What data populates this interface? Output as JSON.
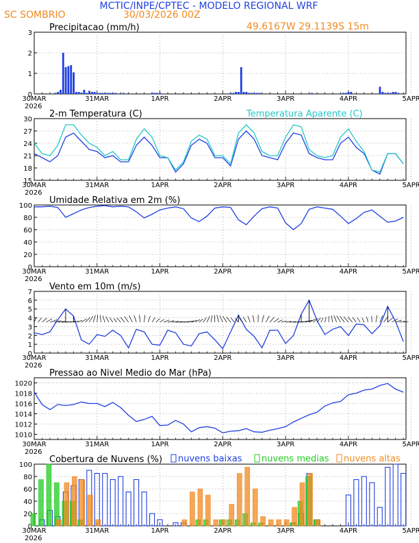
{
  "header": {
    "title": "MCTIC/INPE/CPTEC - MODELO REGIONAL WRF",
    "location": "SC SOMBRIO",
    "run": "30/03/2026 00Z",
    "coords": "49.6167W 29.1139S 15m"
  },
  "colors": {
    "blue": "#1f3fe0",
    "cyan": "#22c8c8",
    "green": "#22cc22",
    "orange": "#f08a20",
    "black": "#000000",
    "grid": "#999999"
  },
  "chart_data": [
    {
      "id": "precip",
      "type": "bar",
      "title": "Precipitacao (mm/h)",
      "ylim": [
        0,
        3
      ],
      "yticks": [
        0,
        1,
        2,
        3
      ],
      "xtick_labels": [
        "30MAR",
        "31MAR",
        "1APR",
        "2APR",
        "3APR",
        "4APR",
        "5APR"
      ],
      "xtick_year": "2026",
      "x_hours": [
        8,
        9,
        10,
        11,
        12,
        13,
        14,
        15,
        16,
        17,
        18,
        19,
        20,
        21,
        22,
        23,
        24,
        25,
        26,
        27,
        28,
        29,
        30,
        31,
        34,
        45,
        46,
        47,
        48,
        75,
        76,
        77,
        78,
        79,
        80,
        81,
        82,
        83,
        84,
        85,
        86,
        106,
        118,
        119,
        120,
        121,
        132,
        133,
        134,
        135,
        136,
        137,
        138,
        139
      ],
      "values": [
        0.05,
        0.1,
        0.2,
        2.0,
        1.3,
        1.35,
        1.4,
        1.05,
        0.1,
        0.1,
        0.05,
        0.2,
        0.05,
        0.15,
        0.1,
        0.1,
        0.05,
        0.05,
        0.05,
        0.05,
        0.05,
        0.05,
        0.05,
        0.05,
        0.05,
        0.05,
        0.05,
        0.05,
        0.05,
        0.05,
        0.05,
        0.1,
        0.1,
        1.3,
        0.1,
        0.1,
        0.05,
        0.05,
        0.05,
        0.05,
        0.05,
        0.05,
        0.05,
        0.05,
        0.1,
        0.1,
        0.35,
        0.1,
        0.05,
        0.05,
        0.05,
        0.1,
        0.1,
        0.05
      ]
    },
    {
      "id": "temp",
      "type": "line",
      "title": "2-m Temperatura (C)",
      "legend": "Temperatura Aparente (C)",
      "ylim": [
        15,
        30
      ],
      "yticks": [
        15,
        18,
        21,
        24,
        27,
        30
      ],
      "xtick_labels": [
        "30MAR",
        "31MAR",
        "1APR",
        "2APR",
        "3APR",
        "4APR",
        "5APR"
      ],
      "xtick_year": "2026",
      "series": [
        {
          "name": "Temperatura (C)",
          "hours": [
            0,
            3,
            6,
            9,
            12,
            15,
            18,
            21,
            24,
            27,
            30,
            33,
            36,
            39,
            42,
            45,
            48,
            51,
            54,
            57,
            60,
            63,
            66,
            69,
            72,
            75,
            78,
            81,
            84,
            87,
            90,
            93,
            96,
            99,
            102,
            105,
            108,
            111,
            114,
            117,
            120,
            123,
            126,
            129,
            132,
            135,
            138,
            141
          ],
          "values": [
            21.5,
            20.5,
            19.5,
            21,
            25.5,
            26.5,
            24.5,
            22.5,
            22,
            20.5,
            21,
            19.5,
            19.5,
            23.5,
            25.5,
            23.5,
            20.5,
            20.5,
            17,
            19,
            23.5,
            25,
            24,
            20.5,
            20.5,
            18.5,
            25,
            27,
            25,
            21,
            20.5,
            20,
            24,
            26.5,
            26,
            21.5,
            20.5,
            20,
            20,
            24,
            25.5,
            23,
            21.5,
            17.5,
            16.5,
            21.5,
            21.5,
            19
          ]
        },
        {
          "name": "Temperatura Aparente (C)",
          "hours": [
            0,
            3,
            6,
            9,
            12,
            15,
            18,
            21,
            24,
            27,
            30,
            33,
            36,
            39,
            42,
            45,
            48,
            51,
            54,
            57,
            60,
            63,
            66,
            69,
            72,
            75,
            78,
            81,
            84,
            87,
            90,
            93,
            96,
            99,
            102,
            105,
            108,
            111,
            114,
            117,
            120,
            123,
            126,
            129,
            132,
            135,
            138,
            141
          ],
          "values": [
            24,
            21.5,
            21,
            23.5,
            28.5,
            28.5,
            26,
            24,
            23,
            21,
            22,
            20,
            20,
            25,
            27.5,
            25.5,
            21,
            20.5,
            17.5,
            19.5,
            24.5,
            26,
            25,
            21,
            21,
            19,
            26.5,
            28.5,
            26.5,
            22,
            21,
            21,
            25.5,
            28.5,
            28,
            22.5,
            21,
            20.5,
            21,
            25.5,
            27.5,
            24.5,
            22,
            17.5,
            17,
            21.5,
            21.5,
            19
          ]
        }
      ]
    },
    {
      "id": "humidity",
      "type": "line",
      "title": "Umidade Relativa em 2m (%)",
      "ylim": [
        0,
        100
      ],
      "yticks": [
        0,
        20,
        40,
        60,
        80,
        100
      ],
      "xtick_labels": [
        "30MAR",
        "31MAR",
        "1APR",
        "2APR",
        "3APR",
        "4APR",
        "5APR"
      ],
      "xtick_year": "2026",
      "series": [
        {
          "name": "Umidade Relativa (%)",
          "hours": [
            0,
            3,
            6,
            9,
            12,
            15,
            18,
            21,
            24,
            27,
            30,
            33,
            36,
            39,
            42,
            45,
            48,
            51,
            54,
            57,
            60,
            63,
            66,
            69,
            72,
            75,
            78,
            81,
            84,
            87,
            90,
            93,
            96,
            99,
            102,
            105,
            108,
            111,
            114,
            117,
            120,
            123,
            126,
            129,
            132,
            135,
            138,
            141
          ],
          "values": [
            97,
            97,
            98,
            96,
            80,
            86,
            92,
            96,
            98,
            99,
            97,
            98,
            97,
            89,
            79,
            85,
            92,
            95,
            97,
            94,
            79,
            73,
            82,
            95,
            97,
            96,
            76,
            68,
            82,
            94,
            97,
            95,
            71,
            60,
            70,
            93,
            97,
            95,
            93,
            82,
            70,
            78,
            88,
            92,
            82,
            72,
            74,
            80
          ]
        }
      ]
    },
    {
      "id": "wind",
      "type": "line",
      "title": "Vento em 10m (m/s)",
      "ylim": [
        0,
        7
      ],
      "yticks": [
        0,
        1,
        2,
        3,
        4,
        5,
        6,
        7
      ],
      "xtick_labels": [
        "30MAR",
        "31MAR",
        "1APR",
        "2APR",
        "3APR",
        "4APR",
        "5APR"
      ],
      "xtick_year": "2026",
      "series": [
        {
          "name": "Velocidade (m/s)",
          "hours": [
            0,
            3,
            6,
            9,
            12,
            15,
            18,
            21,
            24,
            27,
            30,
            33,
            36,
            39,
            42,
            45,
            48,
            51,
            54,
            57,
            60,
            63,
            66,
            69,
            72,
            75,
            78,
            81,
            84,
            87,
            90,
            93,
            96,
            99,
            102,
            105,
            108,
            111,
            114,
            117,
            120,
            123,
            126,
            129,
            132,
            135,
            138,
            141
          ],
          "values": [
            2.3,
            2.1,
            2.4,
            3.8,
            5.0,
            4.2,
            1.5,
            1.0,
            2.1,
            1.9,
            2.6,
            2.0,
            0.6,
            2.7,
            2.4,
            1.0,
            0.9,
            2.6,
            2.3,
            1.0,
            0.8,
            2.2,
            2.4,
            1.5,
            0.5,
            2.4,
            4.3,
            2.7,
            1.9,
            0.6,
            2.6,
            2.6,
            1.1,
            2.0,
            4.4,
            6.0,
            3.7,
            2.1,
            2.7,
            3.0,
            2.0,
            3.3,
            3.2,
            2.2,
            3.1,
            5.3,
            3.6,
            1.3
          ]
        }
      ]
    },
    {
      "id": "pressure",
      "type": "line",
      "title": "Pressao ao Nivel Medio do Mar (hPa)",
      "ylim": [
        1009,
        1021
      ],
      "yticks": [
        1010,
        1012,
        1014,
        1016,
        1018,
        1020
      ],
      "xtick_labels": [
        "30MAR",
        "31MAR",
        "1APR",
        "2APR",
        "3APR",
        "4APR",
        "5APR"
      ],
      "xtick_year": "2026",
      "series": [
        {
          "name": "Pressao (hPa)",
          "hours": [
            0,
            3,
            6,
            9,
            12,
            15,
            18,
            21,
            24,
            27,
            30,
            33,
            36,
            39,
            42,
            45,
            48,
            51,
            54,
            57,
            60,
            63,
            66,
            69,
            72,
            75,
            78,
            81,
            84,
            87,
            90,
            93,
            96,
            99,
            102,
            105,
            108,
            111,
            114,
            117,
            120,
            123,
            126,
            129,
            132,
            135,
            138,
            141
          ],
          "values": [
            1018.2,
            1015.8,
            1014.8,
            1015.8,
            1015.6,
            1015.8,
            1016.3,
            1016.0,
            1016.0,
            1015.4,
            1016.2,
            1015.2,
            1013.7,
            1012.5,
            1012.9,
            1013.5,
            1011.7,
            1011.8,
            1012.7,
            1012.0,
            1010.5,
            1011.3,
            1011.5,
            1011.2,
            1010.3,
            1010.6,
            1010.7,
            1011.1,
            1010.5,
            1010.4,
            1010.8,
            1011.1,
            1011.5,
            1012.4,
            1013.1,
            1013.8,
            1014.3,
            1015.5,
            1016.1,
            1016.4,
            1017.7,
            1018.0,
            1018.6,
            1018.8,
            1019.5,
            1019.9,
            1018.8,
            1018.2
          ]
        }
      ]
    },
    {
      "id": "clouds",
      "type": "bar",
      "title": "Cobertura de Nuvens (%)",
      "legend": [
        "nuvens baixas",
        "nuvens medias",
        "nuvens altas"
      ],
      "ylim": [
        0,
        100
      ],
      "yticks": [
        0,
        20,
        40,
        60,
        80,
        100
      ],
      "xtick_labels": [
        "30MAR",
        "31MAR",
        "1APR",
        "2APR",
        "3APR",
        "4APR",
        "5APR"
      ],
      "xtick_year": "2026",
      "hours": [
        0,
        3,
        6,
        9,
        12,
        15,
        18,
        21,
        24,
        27,
        30,
        33,
        36,
        39,
        42,
        45,
        48,
        51,
        54,
        57,
        60,
        63,
        66,
        69,
        72,
        75,
        78,
        81,
        84,
        87,
        90,
        93,
        96,
        99,
        102,
        105,
        108,
        111,
        114,
        117,
        120,
        123,
        126,
        129,
        132,
        135,
        138,
        141
      ],
      "series": [
        {
          "name": "nuvens baixas",
          "values": [
            0,
            10,
            25,
            15,
            55,
            65,
            75,
            90,
            85,
            85,
            75,
            80,
            55,
            75,
            55,
            20,
            10,
            0,
            5,
            5,
            0,
            0,
            0,
            0,
            0,
            0,
            0,
            0,
            0,
            0,
            0,
            0,
            0,
            5,
            20,
            85,
            10,
            0,
            0,
            0,
            50,
            75,
            80,
            70,
            30,
            95,
            100,
            85
          ]
        },
        {
          "name": "nuvens medias",
          "values": [
            20,
            75,
            100,
            70,
            40,
            40,
            10,
            0,
            0,
            0,
            0,
            0,
            0,
            0,
            0,
            0,
            0,
            0,
            0,
            0,
            0,
            10,
            10,
            0,
            10,
            10,
            10,
            20,
            5,
            5,
            0,
            0,
            0,
            5,
            40,
            80,
            10,
            0,
            0,
            0,
            0,
            0,
            0,
            0,
            0,
            0,
            0,
            0
          ]
        },
        {
          "name": "nuvens altas",
          "values": [
            0,
            0,
            0,
            10,
            70,
            80,
            75,
            50,
            10,
            0,
            0,
            0,
            0,
            0,
            0,
            0,
            0,
            0,
            0,
            10,
            55,
            60,
            50,
            10,
            10,
            35,
            85,
            95,
            60,
            15,
            10,
            10,
            10,
            30,
            70,
            85,
            10,
            0,
            0,
            0,
            0,
            0,
            0,
            0,
            0,
            0,
            0,
            0
          ]
        }
      ]
    }
  ]
}
